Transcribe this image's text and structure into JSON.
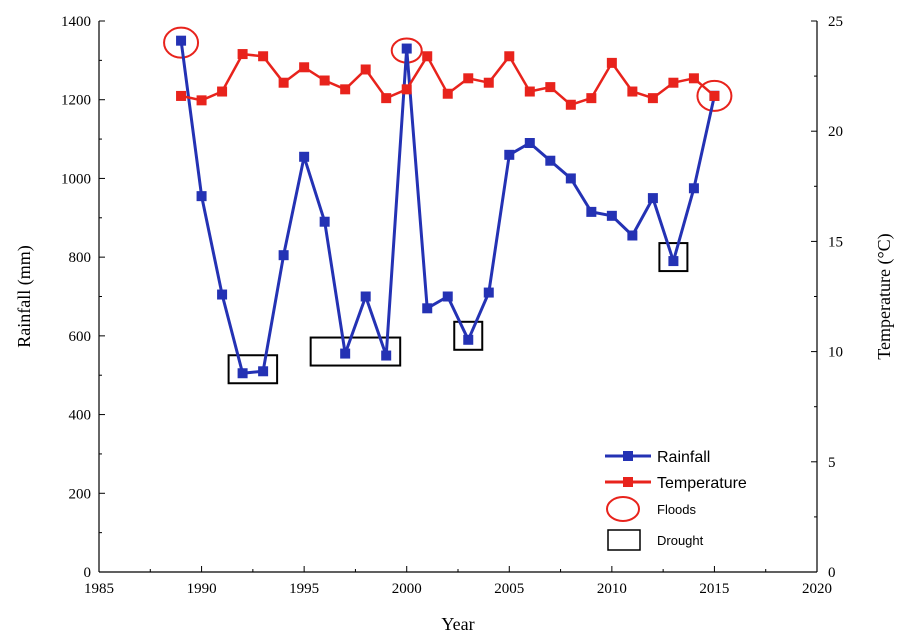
{
  "chart_data": {
    "type": "line",
    "xlabel": "Year",
    "ylabel": "Rainfall (mm)",
    "y2label": "Temperature (°C)",
    "xlim": [
      1985,
      2020
    ],
    "ylim": [
      0,
      1400
    ],
    "y2lim": [
      0,
      25
    ],
    "x_ticks": [
      "1985",
      "1990",
      "1995",
      "2000",
      "2005",
      "2010",
      "2015",
      "2020"
    ],
    "y_ticks": [
      "0",
      "200",
      "400",
      "600",
      "800",
      "1000",
      "1200",
      "1400"
    ],
    "y2_ticks": [
      "0",
      "5",
      "10",
      "15",
      "20",
      "25"
    ],
    "grid": false,
    "legend_position": "bottom-right",
    "series": [
      {
        "name": "Rainfall",
        "axis": "left",
        "color": "#2432b4",
        "x": [
          1989,
          1990,
          1991,
          1992,
          1993,
          1994,
          1995,
          1996,
          1997,
          1998,
          1999,
          2000,
          2001,
          2002,
          2003,
          2004,
          2005,
          2006,
          2007,
          2008,
          2009,
          2010,
          2011,
          2012,
          2013,
          2014,
          2015
        ],
        "y": [
          1350,
          955,
          705,
          505,
          510,
          805,
          1055,
          890,
          555,
          700,
          550,
          1330,
          670,
          700,
          590,
          710,
          1060,
          1090,
          1045,
          1000,
          915,
          905,
          855,
          950,
          790,
          975,
          1210
        ]
      },
      {
        "name": "Temperature",
        "axis": "right",
        "color": "#e8231c",
        "x": [
          1989,
          1990,
          1991,
          1992,
          1993,
          1994,
          1995,
          1996,
          1997,
          1998,
          1999,
          2000,
          2001,
          2002,
          2003,
          2004,
          2005,
          2006,
          2007,
          2008,
          2009,
          2010,
          2011,
          2012,
          2013,
          2014,
          2015
        ],
        "y": [
          21.6,
          21.4,
          21.8,
          23.5,
          23.4,
          22.2,
          22.9,
          22.3,
          21.9,
          22.8,
          21.5,
          21.9,
          23.4,
          21.7,
          22.4,
          22.2,
          23.4,
          21.8,
          22.0,
          21.2,
          21.5,
          23.1,
          21.8,
          21.5,
          22.2,
          22.4,
          21.6
        ]
      }
    ],
    "annotations": {
      "floods": {
        "label": "Floods",
        "color": "#e8231c",
        "years": [
          1989,
          2000,
          2015
        ]
      },
      "drought": {
        "label": "Drought",
        "color": "#000000",
        "year_ranges": [
          [
            1992,
            1993
          ],
          [
            1996,
            1999
          ],
          [
            2003,
            2003
          ],
          [
            2013,
            2013
          ]
        ]
      }
    }
  }
}
